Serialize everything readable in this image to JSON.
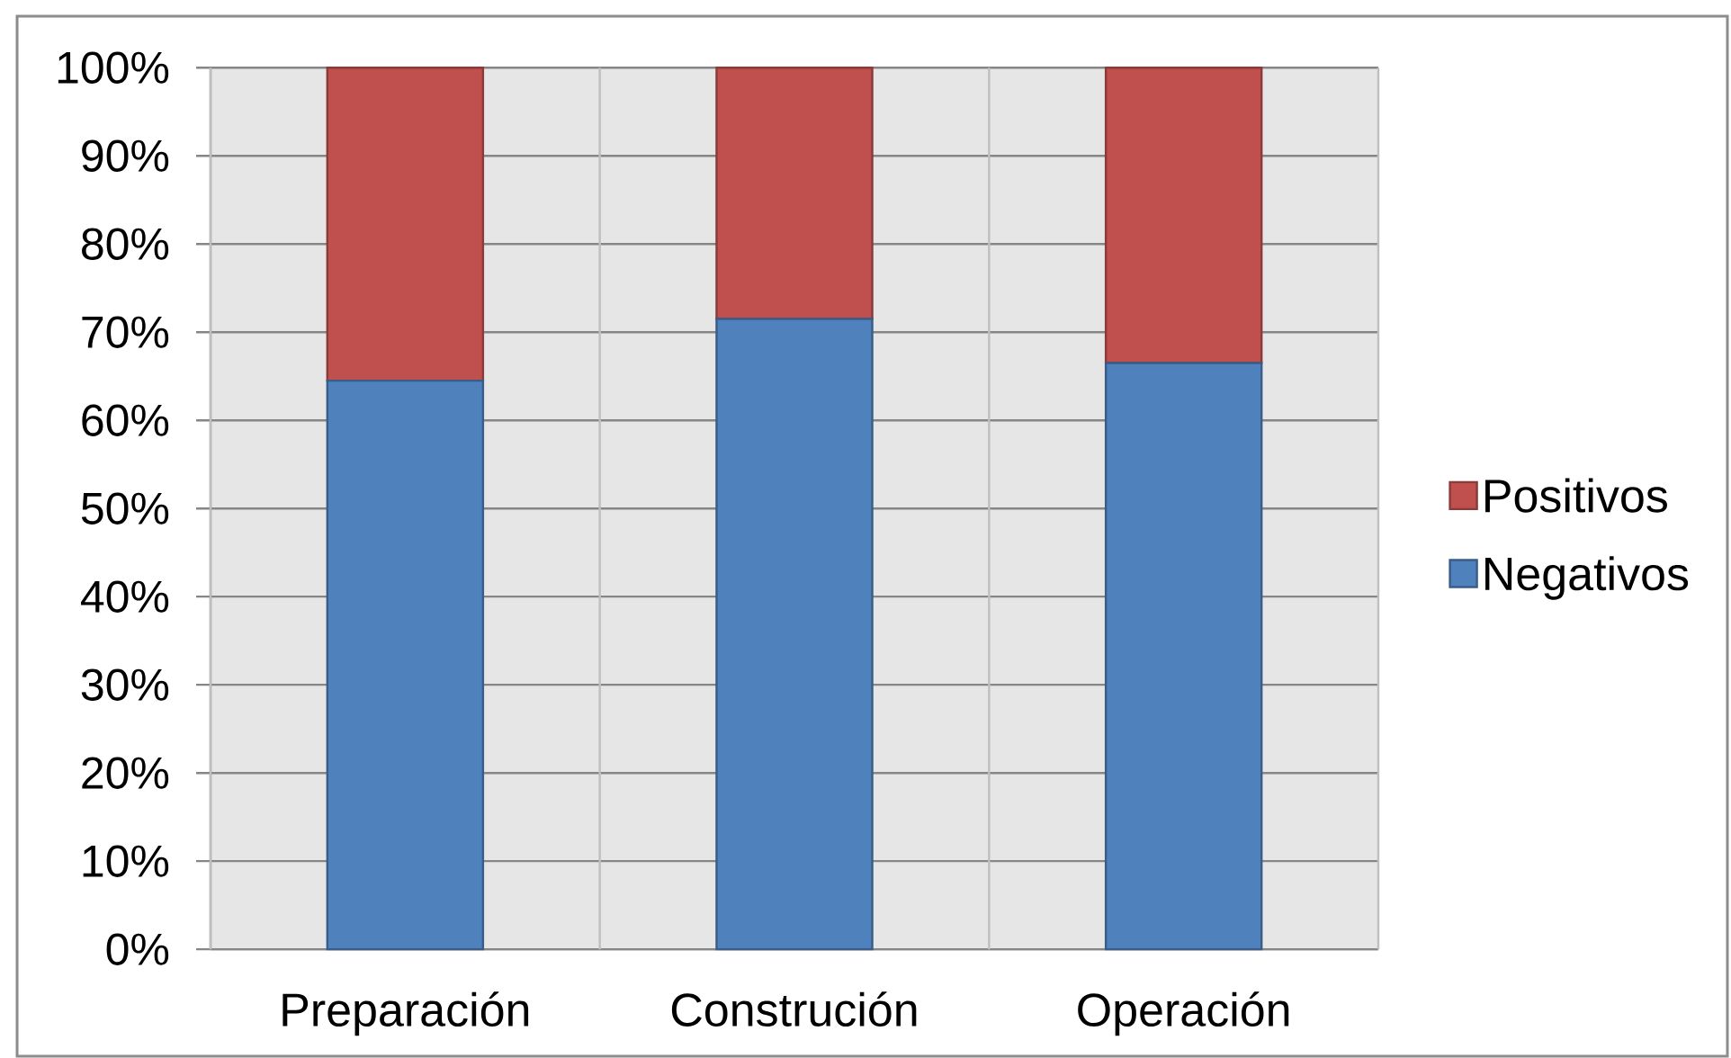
{
  "chart_data": {
    "type": "bar",
    "stacked": true,
    "categories": [
      "Preparación",
      "Construción",
      "Operación"
    ],
    "series": [
      {
        "name": "Negativos",
        "color": "#4f81bd",
        "values": [
          64.5,
          71.5,
          66.5
        ]
      },
      {
        "name": "Positivos",
        "color": "#c0504d",
        "values": [
          35.5,
          28.5,
          33.5
        ]
      }
    ],
    "ylim": [
      0,
      100
    ],
    "yticks": [
      {
        "value": 0,
        "label": "0%"
      },
      {
        "value": 10,
        "label": "10%"
      },
      {
        "value": 20,
        "label": "20%"
      },
      {
        "value": 30,
        "label": "30%"
      },
      {
        "value": 40,
        "label": "40%"
      },
      {
        "value": 50,
        "label": "50%"
      },
      {
        "value": 60,
        "label": "60%"
      },
      {
        "value": 70,
        "label": "70%"
      },
      {
        "value": 80,
        "label": "80%"
      },
      {
        "value": 90,
        "label": "90%"
      },
      {
        "value": 100,
        "label": "100%"
      }
    ],
    "grid": true,
    "legend": "right"
  }
}
